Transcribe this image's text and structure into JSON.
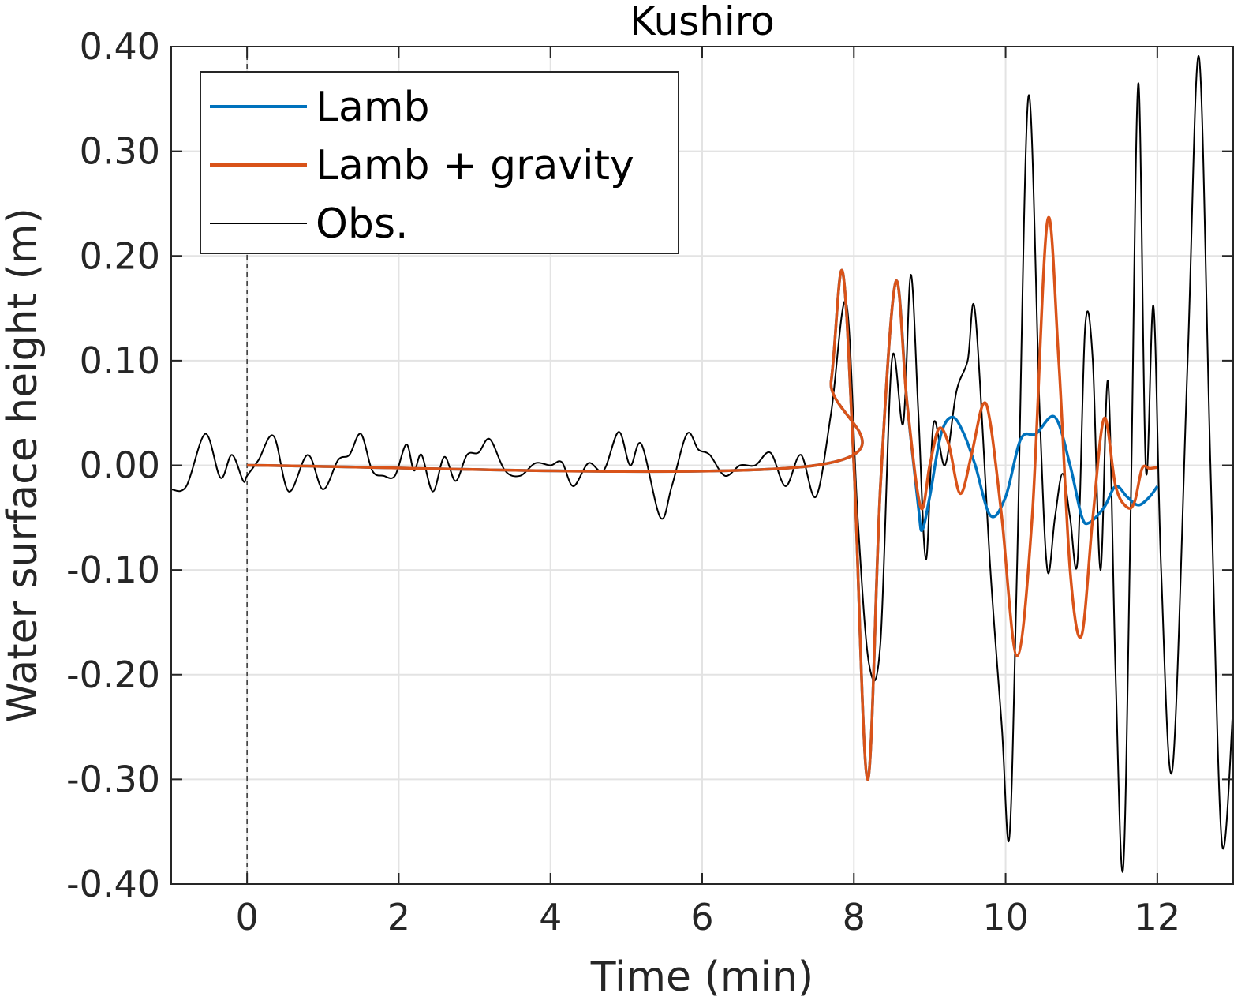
{
  "chart_data": {
    "type": "line",
    "title": "Kushiro",
    "xlabel": "Time (min)",
    "ylabel": "Water surface height (m)",
    "xlim": [
      -1,
      13
    ],
    "ylim": [
      -0.4,
      0.4
    ],
    "xticks": [
      0,
      2,
      4,
      6,
      8,
      10,
      12
    ],
    "xtick_labels": [
      "0",
      "2",
      "4",
      "6",
      "8",
      "10",
      "12"
    ],
    "yticks": [
      -0.4,
      -0.3,
      -0.2,
      -0.1,
      0,
      0.1,
      0.2,
      0.3,
      0.4
    ],
    "ytick_labels": [
      "-0.40",
      "-0.30",
      "-0.20",
      "-0.10",
      "0.00",
      "0.10",
      "0.20",
      "0.30",
      "0.40"
    ],
    "grid": true,
    "legend_position": "top-left",
    "reference_line_x": 0,
    "series": [
      {
        "name": "Lamb",
        "color": "#0072BD",
        "x": [
          0,
          7.5,
          7.7,
          7.85,
          8.0,
          8.18,
          8.35,
          8.55,
          8.7,
          8.85,
          8.9,
          9.0,
          9.15,
          9.3,
          9.45,
          9.6,
          9.8,
          10.0,
          10.2,
          10.4,
          10.65,
          10.85,
          11.0,
          11.1,
          11.3,
          11.45,
          11.6,
          11.75,
          11.9,
          12.0
        ],
        "y": [
          0,
          0,
          0.08,
          0.185,
          0.0,
          -0.3,
          -0.02,
          0.175,
          0.06,
          -0.04,
          -0.062,
          -0.03,
          0.03,
          0.046,
          0.03,
          0.0,
          -0.048,
          -0.03,
          0.025,
          0.03,
          0.046,
          0.0,
          -0.048,
          -0.055,
          -0.04,
          -0.02,
          -0.03,
          -0.038,
          -0.03,
          -0.02
        ]
      },
      {
        "name": "Lamb + gravity",
        "color": "#D95319",
        "x": [
          0,
          7.5,
          7.7,
          7.85,
          8.0,
          8.18,
          8.35,
          8.55,
          8.7,
          8.88,
          9.0,
          9.12,
          9.25,
          9.4,
          9.55,
          9.7,
          9.8,
          9.95,
          10.15,
          10.35,
          10.55,
          10.7,
          10.85,
          11.0,
          11.15,
          11.3,
          11.45,
          11.6,
          11.7,
          11.8,
          11.9,
          12.0
        ],
        "y": [
          0,
          0,
          0.08,
          0.185,
          0.0,
          -0.3,
          -0.02,
          0.175,
          0.06,
          -0.04,
          0.0,
          0.035,
          0.02,
          -0.027,
          0.01,
          0.058,
          0.04,
          -0.05,
          -0.182,
          -0.05,
          0.233,
          0.1,
          -0.1,
          -0.163,
          -0.05,
          0.045,
          -0.02,
          -0.04,
          -0.035,
          -0.003,
          -0.003,
          -0.002
        ]
      },
      {
        "name": "Obs.",
        "color": "#000000",
        "x": [
          -1.0,
          -0.8,
          -0.55,
          -0.35,
          -0.2,
          -0.05,
          0.0,
          0.15,
          0.35,
          0.55,
          0.8,
          1.0,
          1.2,
          1.35,
          1.5,
          1.65,
          1.8,
          1.95,
          2.1,
          2.2,
          2.3,
          2.45,
          2.6,
          2.75,
          2.9,
          3.05,
          3.2,
          3.4,
          3.6,
          3.8,
          4.0,
          4.15,
          4.3,
          4.5,
          4.7,
          4.9,
          5.05,
          5.2,
          5.45,
          5.6,
          5.8,
          5.95,
          6.1,
          6.3,
          6.5,
          6.7,
          6.9,
          7.1,
          7.3,
          7.5,
          7.7,
          7.9,
          8.05,
          8.2,
          8.35,
          8.5,
          8.65,
          8.75,
          8.85,
          8.95,
          9.05,
          9.2,
          9.35,
          9.5,
          9.6,
          9.8,
          9.95,
          10.05,
          10.15,
          10.3,
          10.45,
          10.55,
          10.65,
          10.75,
          10.85,
          10.95,
          11.05,
          11.15,
          11.25,
          11.35,
          11.45,
          11.55,
          11.65,
          11.75,
          11.85,
          11.95,
          12.05,
          12.2,
          12.4,
          12.55,
          12.7,
          12.85,
          13.0
        ],
        "y": [
          -0.023,
          -0.02,
          0.03,
          -0.012,
          0.01,
          -0.015,
          -0.01,
          0.005,
          0.028,
          -0.025,
          0.01,
          -0.023,
          0.005,
          0.01,
          0.03,
          -0.005,
          -0.01,
          -0.01,
          0.02,
          -0.005,
          0.01,
          -0.025,
          0.008,
          -0.015,
          0.01,
          0.012,
          0.025,
          -0.005,
          -0.01,
          0.002,
          0.0,
          0.003,
          -0.02,
          0.002,
          -0.005,
          0.032,
          0.0,
          0.02,
          -0.05,
          -0.02,
          0.03,
          0.015,
          0.01,
          -0.01,
          0.0,
          0.0,
          0.012,
          -0.02,
          0.01,
          -0.03,
          0.05,
          0.155,
          -0.05,
          -0.19,
          -0.17,
          0.1,
          0.04,
          0.182,
          0.05,
          -0.09,
          0.04,
          0.0,
          0.07,
          0.1,
          0.145,
          -0.1,
          -0.25,
          -0.355,
          -0.1,
          0.352,
          0.05,
          -0.1,
          -0.05,
          -0.008,
          -0.05,
          -0.09,
          0.133,
          0.1,
          -0.1,
          0.08,
          -0.2,
          -0.385,
          -0.04,
          0.365,
          -0.005,
          0.152,
          -0.1,
          -0.29,
          0.1,
          0.39,
          0.0,
          -0.36,
          -0.23
        ]
      }
    ]
  }
}
